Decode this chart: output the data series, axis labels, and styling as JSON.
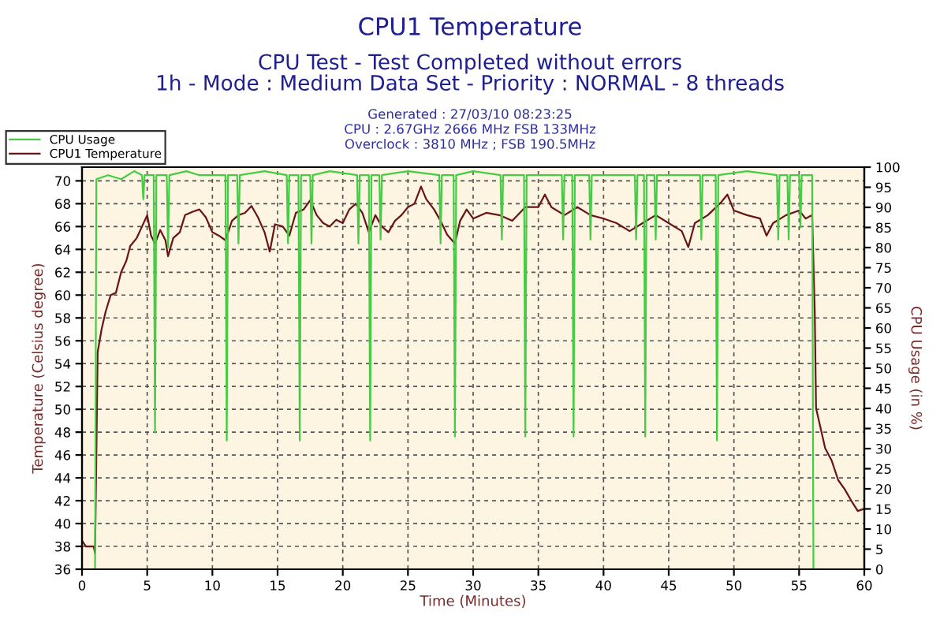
{
  "chart_data": {
    "type": "line",
    "title": "CPU1 Temperature",
    "subtitle": "CPU Test - Test Completed without errors\n1h - Mode : Medium Data Set - Priority : NORMAL - 8 threads",
    "annotations": [
      "Generated : 27/03/10 08:23:25",
      "CPU : 2.67GHz 2666 MHz FSB 133MHz",
      "Overclock : 3810 MHz ; FSB 190.5MHz"
    ],
    "xlabel": "Time (Minutes)",
    "ylabel": "Temperature (Celsius degree)",
    "y2label": "CPU Usage (in %)",
    "xlim": [
      0,
      60
    ],
    "xticks": [
      0,
      5,
      10,
      15,
      20,
      25,
      30,
      35,
      40,
      45,
      50,
      55,
      60
    ],
    "ylim": [
      36,
      71.2
    ],
    "yticks": [
      36,
      38,
      40,
      42,
      44,
      46,
      48,
      50,
      52,
      54,
      56,
      58,
      60,
      62,
      64,
      66,
      68,
      70
    ],
    "y2lim": [
      0,
      100
    ],
    "y2ticks": [
      0,
      5,
      10,
      15,
      20,
      25,
      30,
      35,
      40,
      45,
      50,
      55,
      60,
      65,
      70,
      75,
      80,
      85,
      90,
      95,
      100
    ],
    "grid": true,
    "legend": "top left",
    "marker": "none",
    "line_style": "solid",
    "series": [
      {
        "name": "CPU Usage",
        "color": "#44cc44",
        "axis": "y2",
        "x": [
          0,
          1.0,
          1.1,
          2,
          3,
          4,
          4.6,
          4.7,
          4.8,
          5.5,
          5.6,
          5.7,
          6.5,
          6.6,
          6.7,
          8,
          9,
          10,
          11.0,
          11.1,
          11.2,
          11.9,
          12.0,
          12.1,
          14,
          15.7,
          15.8,
          15.9,
          16.6,
          16.7,
          16.8,
          17.5,
          17.6,
          17.7,
          19,
          21.1,
          21.2,
          21.3,
          22.0,
          22.1,
          22.2,
          22.8,
          22.9,
          23.0,
          25,
          27.4,
          27.5,
          27.6,
          28.5,
          28.6,
          28.7,
          30,
          32.1,
          32.2,
          32.3,
          33.9,
          34.0,
          34.1,
          36.8,
          36.9,
          37.0,
          37.6,
          37.7,
          37.8,
          38.9,
          39.0,
          39.1,
          42.4,
          42.5,
          42.6,
          43.1,
          43.2,
          43.3,
          43.9,
          44.0,
          44.1,
          47.4,
          47.5,
          47.6,
          48.6,
          48.7,
          48.8,
          51,
          53.3,
          53.4,
          53.5,
          54.1,
          54.2,
          54.3,
          55.0,
          55.1,
          55.2,
          56.0,
          56.1,
          60
        ],
        "values": [
          0,
          0,
          97,
          98,
          97,
          99,
          98,
          92,
          98,
          98,
          34,
          98,
          98,
          80,
          98,
          99,
          98,
          98,
          98,
          32,
          98,
          98,
          81,
          98,
          99,
          98,
          81,
          98,
          98,
          32,
          98,
          98,
          81,
          98,
          99,
          98,
          81,
          98,
          98,
          32,
          98,
          98,
          82,
          98,
          99,
          98,
          81,
          98,
          98,
          33,
          98,
          99,
          98,
          82,
          98,
          98,
          33,
          98,
          98,
          82,
          98,
          98,
          33,
          98,
          98,
          82,
          98,
          98,
          82,
          98,
          98,
          33,
          98,
          98,
          82,
          98,
          98,
          82,
          98,
          98,
          32,
          98,
          99,
          98,
          82,
          98,
          98,
          82,
          98,
          98,
          85,
          98,
          98,
          0,
          0
        ]
      },
      {
        "name": "CPU1 Temperature",
        "color": "#6b1414",
        "axis": "y",
        "x": [
          0,
          0.3,
          0.9,
          1.0,
          1.1,
          1.2,
          1.5,
          1.8,
          2.2,
          2.6,
          3.0,
          3.4,
          3.7,
          4.2,
          4.6,
          5.0,
          5.3,
          5.6,
          6.0,
          6.4,
          6.6,
          7.0,
          7.5,
          7.9,
          8.5,
          9.0,
          9.5,
          10.0,
          10.5,
          11.0,
          11.5,
          12.0,
          12.5,
          13.0,
          13.5,
          14.0,
          14.4,
          14.8,
          15.4,
          15.9,
          16.4,
          17.0,
          17.5,
          18.0,
          18.5,
          19.0,
          19.5,
          20.0,
          20.5,
          21.0,
          21.5,
          22.0,
          22.5,
          23.0,
          23.5,
          24.0,
          24.5,
          25.0,
          25.5,
          26.0,
          26.4,
          27.0,
          27.5,
          28.0,
          28.6,
          29.0,
          29.5,
          30,
          31,
          32,
          33,
          34,
          35,
          35.5,
          36,
          37,
          38,
          39,
          40,
          41,
          42,
          43,
          44,
          45,
          46,
          46.5,
          47,
          48,
          49,
          49.5,
          50,
          51,
          52,
          52.5,
          53,
          54,
          55,
          55.5,
          56,
          56.2,
          56.3,
          57,
          57.5,
          58,
          58.5,
          59,
          59.5,
          60
        ],
        "values": [
          38.5,
          38.0,
          38.0,
          37.4,
          46,
          55,
          57,
          58.5,
          60,
          60.2,
          62,
          63,
          64.3,
          65,
          66,
          67,
          65.2,
          64.5,
          65.7,
          64.8,
          63.4,
          65,
          65.5,
          67,
          67.3,
          67.5,
          66.8,
          65.5,
          65.2,
          64.8,
          66.5,
          67,
          67.2,
          67.8,
          66.8,
          65.5,
          63.8,
          66.2,
          66,
          65.2,
          67.2,
          67.5,
          68.3,
          67,
          66.3,
          66,
          66.6,
          66.3,
          67.5,
          68,
          67.2,
          65.5,
          67,
          66,
          65.5,
          66.5,
          67,
          67.7,
          68,
          69.5,
          68.4,
          67.5,
          66.5,
          65.3,
          64.5,
          66.5,
          67.5,
          66.7,
          67.2,
          67,
          66.5,
          67.7,
          67.7,
          68.8,
          67.7,
          67,
          67.7,
          67,
          66.7,
          66.3,
          65.6,
          66.3,
          67,
          66.3,
          65.6,
          64.2,
          66.3,
          67,
          68.1,
          68.8,
          67.4,
          67,
          66.7,
          65.2,
          66.3,
          67,
          67.4,
          66.7,
          67,
          58.6,
          50.1,
          46.6,
          45.5,
          43.8,
          43,
          42,
          41.1,
          41.3
        ]
      }
    ]
  }
}
